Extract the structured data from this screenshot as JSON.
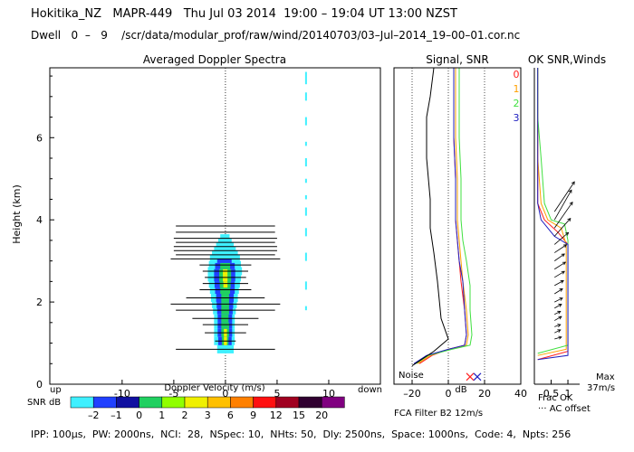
{
  "header": {
    "title": "Hokitika_NZ   MAPR-449   Thu Jul 03 2014  19:00 – 19:04 UT 13:00 NZST",
    "dwell": "Dwell   0  –   9    /scr/data/modular_prof/raw/wind/20140703/03–Jul–2014_19–00–01.cor.nc"
  },
  "footer": {
    "params": "IPP: 100μs,  PW: 2000ns,  NCI:  28,  NSpec: 10,  NHts: 50,  Dly: 2500ns,  Space: 1000ns,  Code: 4,  Npts: 256"
  },
  "colors": {
    "snr_scale": [
      "#3ff0ff",
      "#2040ff",
      "#1010a0",
      "#20d060",
      "#90ff00",
      "#f0f000",
      "#ffc000",
      "#ff8000",
      "#ff1010",
      "#a00020",
      "#300030",
      "#800080"
    ],
    "series": {
      "0": "#ff2020",
      "1": "#ffa000",
      "2": "#40e040",
      "3": "#2020c0"
    },
    "noise": "#000000"
  },
  "chart_data": [
    {
      "type": "heatmap",
      "title": "Averaged Doppler Spectra",
      "xlabel": "Doppler Velocity (m/s)",
      "ylabel": "Height (km)",
      "xlim": [
        -17,
        15
      ],
      "ylim": [
        0,
        7.7
      ],
      "x_ticks": [
        -10,
        -5,
        0,
        5,
        10
      ],
      "y_ticks": [
        0,
        2,
        4,
        6
      ],
      "x_side_labels": {
        "left": "up",
        "right": "down"
      },
      "colorbar": {
        "label": "SNR dB",
        "ticks": [
          "–2",
          "–1",
          "0",
          "1",
          "2",
          "3",
          "6",
          "9",
          "12",
          "15",
          "20"
        ]
      },
      "spectra": [
        {
          "h": 0.85,
          "spread": 4.8,
          "cyan": [
            -0.8,
            0.8
          ],
          "blue": [
            0,
            0
          ],
          "green": [
            0,
            0
          ],
          "yellow": [
            0,
            0
          ]
        },
        {
          "h": 1.05,
          "spread": 1.0,
          "cyan": [
            -1.1,
            0.9
          ],
          "blue": [
            -0.7,
            0.6
          ],
          "green": [
            -0.35,
            0.3
          ],
          "yellow": [
            -0.15,
            0.15
          ]
        },
        {
          "h": 1.25,
          "spread": 2.0,
          "cyan": [
            -1.1,
            0.9
          ],
          "blue": [
            -0.75,
            0.65
          ],
          "green": [
            -0.4,
            0.35
          ],
          "yellow": [
            -0.15,
            0.15
          ]
        },
        {
          "h": 1.45,
          "spread": 2.2,
          "cyan": [
            -1.1,
            0.9
          ],
          "blue": [
            -0.75,
            0.65
          ],
          "green": [
            -0.4,
            0.35
          ],
          "yellow": [
            0,
            0
          ]
        },
        {
          "h": 1.6,
          "spread": 3.2,
          "cyan": [
            -1.1,
            0.9
          ],
          "blue": [
            -0.75,
            0.65
          ],
          "green": [
            -0.4,
            0.3
          ],
          "yellow": [
            0,
            0
          ]
        },
        {
          "h": 1.8,
          "spread": 4.8,
          "cyan": [
            -1.2,
            1.0
          ],
          "blue": [
            -0.8,
            0.7
          ],
          "green": [
            -0.4,
            0.35
          ],
          "yellow": [
            0,
            0
          ]
        },
        {
          "h": 1.95,
          "spread": 5.3,
          "cyan": [
            -1.3,
            1.1
          ],
          "blue": [
            -0.85,
            0.75
          ],
          "green": [
            -0.4,
            0.35
          ],
          "yellow": [
            0,
            0
          ]
        },
        {
          "h": 2.1,
          "spread": 3.8,
          "cyan": [
            -1.4,
            1.2
          ],
          "blue": [
            -0.9,
            0.8
          ],
          "green": [
            -0.4,
            0.35
          ],
          "yellow": [
            0,
            0
          ]
        },
        {
          "h": 2.3,
          "spread": 2.5,
          "cyan": [
            -1.5,
            1.3
          ],
          "blue": [
            -1.0,
            0.9
          ],
          "green": [
            -0.5,
            0.45
          ],
          "yellow": [
            0,
            0
          ]
        },
        {
          "h": 2.45,
          "spread": 2.2,
          "cyan": [
            -1.6,
            1.4
          ],
          "blue": [
            -1.05,
            0.9
          ],
          "green": [
            -0.55,
            0.5
          ],
          "yellow": [
            -0.2,
            0.2
          ]
        },
        {
          "h": 2.6,
          "spread": 2.0,
          "cyan": [
            -1.7,
            1.5
          ],
          "blue": [
            -1.1,
            0.95
          ],
          "green": [
            -0.6,
            0.55
          ],
          "yellow": [
            -0.25,
            0.2
          ]
        },
        {
          "h": 2.75,
          "spread": 2.2,
          "cyan": [
            -1.7,
            1.6
          ],
          "blue": [
            -1.1,
            0.95
          ],
          "green": [
            -0.6,
            0.55
          ],
          "yellow": [
            -0.25,
            0.2
          ]
        },
        {
          "h": 2.9,
          "spread": 2.5,
          "cyan": [
            -1.6,
            1.5
          ],
          "blue": [
            -1.0,
            0.9
          ],
          "green": [
            -0.5,
            0.45
          ],
          "yellow": [
            0,
            0
          ]
        },
        {
          "h": 3.05,
          "spread": 5.3,
          "cyan": [
            -1.5,
            1.4
          ],
          "blue": [
            -0.8,
            0.6
          ],
          "green": [
            0,
            0
          ],
          "yellow": [
            0,
            0
          ]
        },
        {
          "h": 3.15,
          "spread": 4.8,
          "cyan": [
            -1.3,
            1.2
          ],
          "blue": [
            0,
            0
          ],
          "green": [
            0,
            0
          ],
          "yellow": [
            0,
            0
          ]
        },
        {
          "h": 3.25,
          "spread": 5.0,
          "cyan": [
            -1.1,
            1.0
          ],
          "blue": [
            0,
            0
          ],
          "green": [
            0,
            0
          ],
          "yellow": [
            0,
            0
          ]
        },
        {
          "h": 3.35,
          "spread": 5.0,
          "cyan": [
            -0.9,
            0.8
          ],
          "blue": [
            0,
            0
          ],
          "green": [
            0,
            0
          ],
          "yellow": [
            0,
            0
          ]
        },
        {
          "h": 3.45,
          "spread": 4.8,
          "cyan": [
            -0.7,
            0.6
          ],
          "blue": [
            0,
            0
          ],
          "green": [
            0,
            0
          ],
          "yellow": [
            0,
            0
          ]
        },
        {
          "h": 3.55,
          "spread": 5.0,
          "cyan": [
            -0.5,
            0.4
          ],
          "blue": [
            0,
            0
          ],
          "green": [
            0,
            0
          ],
          "yellow": [
            0,
            0
          ]
        },
        {
          "h": 3.7,
          "spread": 4.8,
          "cyan": [
            0,
            0
          ],
          "blue": [
            0,
            0
          ],
          "green": [
            0,
            0
          ],
          "yellow": [
            0,
            0
          ]
        },
        {
          "h": 3.85,
          "spread": 4.8,
          "cyan": [
            0,
            0
          ],
          "blue": [
            0,
            0
          ],
          "green": [
            0,
            0
          ],
          "yellow": [
            0,
            0
          ]
        }
      ],
      "interference": {
        "x": 7.8,
        "segments": [
          [
            7.3,
            7.6
          ],
          [
            6.9,
            7.1
          ],
          [
            6.3,
            6.5
          ],
          [
            5.8,
            5.9
          ],
          [
            5.3,
            5.5
          ],
          [
            4.9,
            5.0
          ],
          [
            4.5,
            4.6
          ],
          [
            4.1,
            4.3
          ],
          [
            3.6,
            3.8
          ],
          [
            3.0,
            3.2
          ],
          [
            2.3,
            2.5
          ],
          [
            1.8,
            1.9
          ]
        ]
      }
    },
    {
      "type": "line",
      "title": "Signal, SNR",
      "xlabel": "dB",
      "xlim": [
        -30,
        40
      ],
      "ylim": [
        0,
        7.7
      ],
      "x_ticks": [
        -20,
        0,
        20,
        40
      ],
      "reference_lines": [
        -20,
        0,
        20
      ],
      "annotations": [
        "Noise"
      ],
      "series": [
        {
          "name": "0",
          "points": [
            [
              -16,
              0.5
            ],
            [
              -9,
              0.7
            ],
            [
              0,
              0.85
            ],
            [
              9,
              0.95
            ],
            [
              10,
              1.2
            ],
            [
              9,
              1.8
            ],
            [
              7,
              2.5
            ],
            [
              6,
              3.0
            ],
            [
              5,
              3.5
            ],
            [
              4,
              4.0
            ],
            [
              4,
              5.0
            ],
            [
              3,
              6.0
            ],
            [
              3,
              7.0
            ],
            [
              3,
              7.7
            ]
          ]
        },
        {
          "name": "1",
          "points": [
            [
              -17,
              0.5
            ],
            [
              -10,
              0.7
            ],
            [
              0,
              0.85
            ],
            [
              10,
              0.95
            ],
            [
              11,
              1.2
            ],
            [
              10,
              1.8
            ],
            [
              8,
              2.5
            ],
            [
              7,
              3.0
            ],
            [
              6,
              3.5
            ],
            [
              5,
              4.0
            ],
            [
              5,
              5.0
            ],
            [
              4,
              6.0
            ],
            [
              4,
              7.0
            ],
            [
              4,
              7.7
            ]
          ]
        },
        {
          "name": "2",
          "points": [
            [
              -18,
              0.5
            ],
            [
              -11,
              0.7
            ],
            [
              2,
              0.85
            ],
            [
              12,
              0.95
            ],
            [
              13,
              1.2
            ],
            [
              12,
              1.8
            ],
            [
              12,
              2.4
            ],
            [
              10,
              3.0
            ],
            [
              8,
              3.5
            ],
            [
              7,
              4.0
            ],
            [
              7,
              5.0
            ],
            [
              6,
              6.0
            ],
            [
              6,
              7.0
            ],
            [
              6,
              7.7
            ]
          ]
        },
        {
          "name": "3",
          "points": [
            [
              -19,
              0.5
            ],
            [
              -12,
              0.7
            ],
            [
              0,
              0.85
            ],
            [
              9,
              0.95
            ],
            [
              10,
              1.2
            ],
            [
              9,
              1.8
            ],
            [
              8,
              2.5
            ],
            [
              6,
              3.0
            ],
            [
              5,
              3.5
            ],
            [
              4,
              4.0
            ],
            [
              4,
              5.0
            ],
            [
              3,
              6.0
            ],
            [
              3,
              7.0
            ],
            [
              3,
              7.7
            ]
          ]
        },
        {
          "name": "Noise",
          "points": [
            [
              -20,
              0.45
            ],
            [
              -8,
              0.8
            ],
            [
              0,
              1.1
            ],
            [
              -4,
              1.6
            ],
            [
              -6,
              2.5
            ],
            [
              -8,
              3.2
            ],
            [
              -10,
              3.8
            ],
            [
              -10,
              4.5
            ],
            [
              -12,
              5.5
            ],
            [
              -12,
              6.5
            ],
            [
              -10,
              7.0
            ],
            [
              -8,
              7.7
            ]
          ]
        }
      ],
      "markers": [
        {
          "x": 12,
          "y": 0.18
        },
        {
          "x": 16,
          "y": 0.18
        }
      ]
    },
    {
      "type": "line",
      "title": "OK SNR,Winds",
      "xlabel": "Frac OK",
      "xlim": [
        0,
        1.35
      ],
      "ylim": [
        0,
        7.7
      ],
      "x_ticks": [
        "0.5",
        "1"
      ],
      "legend": [
        "0",
        "1",
        "2",
        "3"
      ],
      "annotations": [
        "··· AC offset",
        "Max",
        "37m/s"
      ],
      "series": [
        {
          "name": "0",
          "points": [
            [
              0.1,
              0.6
            ],
            [
              1.0,
              0.8
            ],
            [
              1.0,
              3.4
            ],
            [
              0.7,
              3.7
            ],
            [
              0.3,
              4.0
            ],
            [
              0.1,
              4.4
            ],
            [
              0.1,
              5.5
            ],
            [
              0.1,
              6.5
            ],
            [
              0.1,
              7.7
            ]
          ]
        },
        {
          "name": "1",
          "points": [
            [
              0.1,
              0.7
            ],
            [
              0.95,
              0.85
            ],
            [
              0.95,
              3.4
            ],
            [
              0.8,
              3.8
            ],
            [
              0.4,
              4.0
            ],
            [
              0.2,
              4.4
            ],
            [
              0.1,
              5.5
            ],
            [
              0.1,
              6.5
            ],
            [
              0.1,
              7.7
            ]
          ]
        },
        {
          "name": "2",
          "points": [
            [
              0.1,
              0.75
            ],
            [
              1.0,
              0.95
            ],
            [
              1.0,
              3.5
            ],
            [
              0.9,
              3.9
            ],
            [
              0.5,
              4.0
            ],
            [
              0.3,
              4.4
            ],
            [
              0.2,
              5.5
            ],
            [
              0.1,
              6.5
            ],
            [
              0.1,
              7.7
            ]
          ]
        },
        {
          "name": "3",
          "points": [
            [
              0.1,
              0.6
            ],
            [
              1.0,
              0.7
            ],
            [
              1.0,
              3.4
            ],
            [
              0.6,
              3.6
            ],
            [
              0.2,
              4.0
            ],
            [
              0.1,
              4.4
            ],
            [
              0.1,
              5.5
            ],
            [
              0.1,
              6.5
            ],
            [
              0.1,
              7.7
            ]
          ]
        }
      ],
      "winds": [
        {
          "h": 1.1,
          "u": 7,
          "v": 2
        },
        {
          "h": 1.25,
          "u": 6,
          "v": 3
        },
        {
          "h": 1.4,
          "u": 6,
          "v": 2
        },
        {
          "h": 1.55,
          "u": 7,
          "v": 4
        },
        {
          "h": 1.7,
          "u": 6,
          "v": 3
        },
        {
          "h": 1.85,
          "u": 7,
          "v": 4
        },
        {
          "h": 2.0,
          "u": 8,
          "v": 4
        },
        {
          "h": 2.2,
          "u": 8,
          "v": 5
        },
        {
          "h": 2.4,
          "u": 9,
          "v": 5
        },
        {
          "h": 2.6,
          "u": 10,
          "v": 6
        },
        {
          "h": 2.8,
          "u": 11,
          "v": 7
        },
        {
          "h": 3.0,
          "u": 10,
          "v": 7
        },
        {
          "h": 3.2,
          "u": 12,
          "v": 8
        },
        {
          "h": 3.4,
          "u": 14,
          "v": 12
        },
        {
          "h": 3.6,
          "u": 16,
          "v": 18
        },
        {
          "h": 3.8,
          "u": 18,
          "v": 26
        },
        {
          "h": 4.0,
          "u": 17,
          "v": 30
        },
        {
          "h": 4.2,
          "u": 20,
          "v": 30
        }
      ]
    }
  ]
}
